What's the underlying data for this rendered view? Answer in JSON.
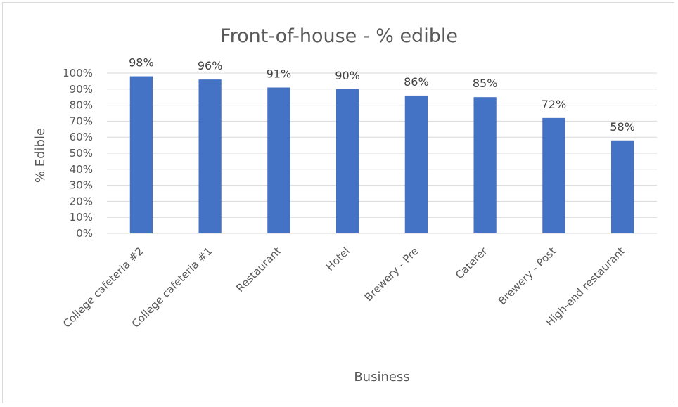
{
  "chart_data": {
    "type": "bar",
    "title": "Front-of-house - % edible",
    "xlabel": "Business",
    "ylabel": "% Edible",
    "categories": [
      "College cafeteria #2",
      "College cafeteria #1",
      "Restaurant",
      "Hotel",
      "Brewery - Pre",
      "Caterer",
      "Brewery - Post",
      "High-end restaurant"
    ],
    "values": [
      98,
      96,
      91,
      90,
      86,
      85,
      72,
      58
    ],
    "data_labels": [
      "98%",
      "96%",
      "91%",
      "90%",
      "86%",
      "85%",
      "72%",
      "58%"
    ],
    "ylim": [
      0,
      100
    ],
    "y_ticks": [
      "0%",
      "10%",
      "20%",
      "30%",
      "40%",
      "50%",
      "60%",
      "70%",
      "80%",
      "90%",
      "100%"
    ],
    "grid": true,
    "legend": "none",
    "bar_color": "#4472c4"
  }
}
